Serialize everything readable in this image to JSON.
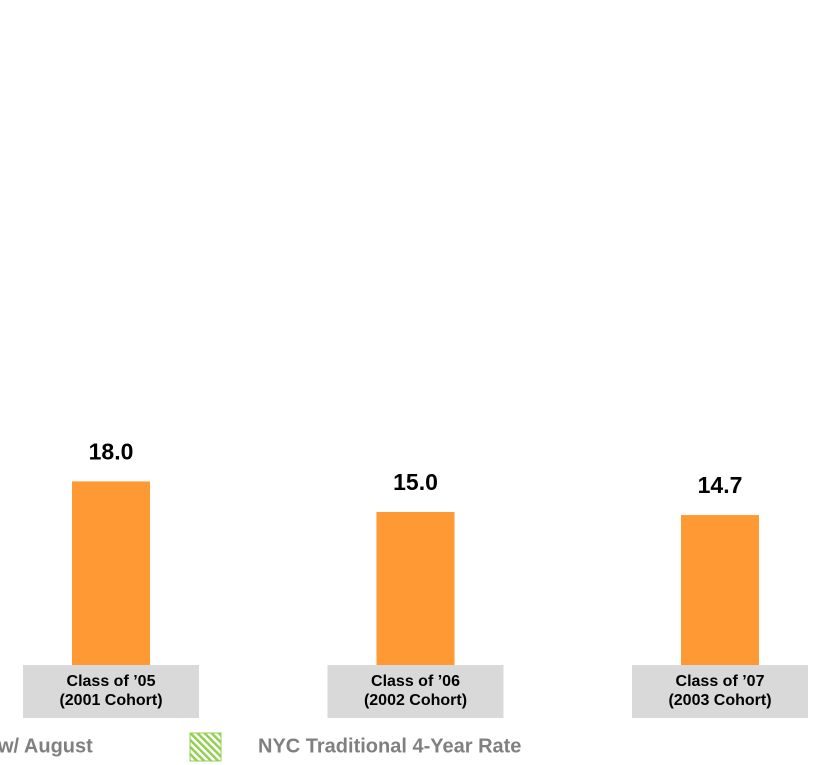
{
  "chart_data": {
    "type": "bar",
    "categories": [
      [
        "Class of ’05",
        "(2001 Cohort)"
      ],
      [
        "Class of ’06",
        "(2002 Cohort)"
      ],
      [
        "Class of ’07",
        "(2003 Cohort)"
      ]
    ],
    "series": [
      {
        "name": "w/ August",
        "color": "#ff9933",
        "values": [
          18.0,
          15.0,
          14.7
        ],
        "value_labels": [
          "18.0",
          "15.0",
          "14.7"
        ]
      }
    ],
    "legend": [
      {
        "name": "w/ August"
      },
      {
        "name": "NYC Traditional 4-Year Rate",
        "color": "#92d050",
        "pattern": "hatch"
      }
    ]
  }
}
